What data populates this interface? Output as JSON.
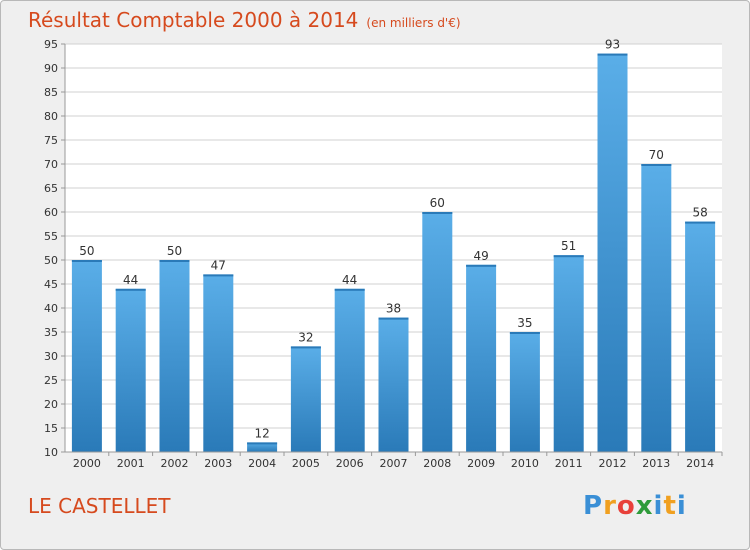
{
  "header": {
    "title": "Résultat Comptable 2000 à 2014",
    "unit": "(en milliers d'€)"
  },
  "footer": {
    "commune": "LE CASTELLET",
    "logo_letters": [
      "P",
      "r",
      "o",
      "x",
      "i",
      "t",
      "i"
    ],
    "logo_colors": [
      "#3a8fd6",
      "#f0a020",
      "#e8403a",
      "#2e9b3a",
      "#3a8fd6",
      "#f0a020",
      "#3a8fd6"
    ]
  },
  "colors": {
    "bar_light": "#5aaee8",
    "bar_dark": "#2a7ab8",
    "title": "#d64a1e",
    "grid": "#d0d0d0"
  },
  "chart_data": {
    "type": "bar",
    "categories": [
      "2000",
      "2001",
      "2002",
      "2003",
      "2004",
      "2005",
      "2006",
      "2007",
      "2008",
      "2009",
      "2010",
      "2011",
      "2012",
      "2013",
      "2014"
    ],
    "values": [
      50,
      44,
      50,
      47,
      12,
      32,
      44,
      38,
      60,
      49,
      35,
      51,
      93,
      70,
      58
    ],
    "ylim": [
      10,
      95
    ],
    "yticks": [
      10,
      15,
      20,
      25,
      30,
      35,
      40,
      45,
      50,
      55,
      60,
      65,
      70,
      75,
      80,
      85,
      90,
      95
    ],
    "grid": true,
    "data_labels": true
  }
}
